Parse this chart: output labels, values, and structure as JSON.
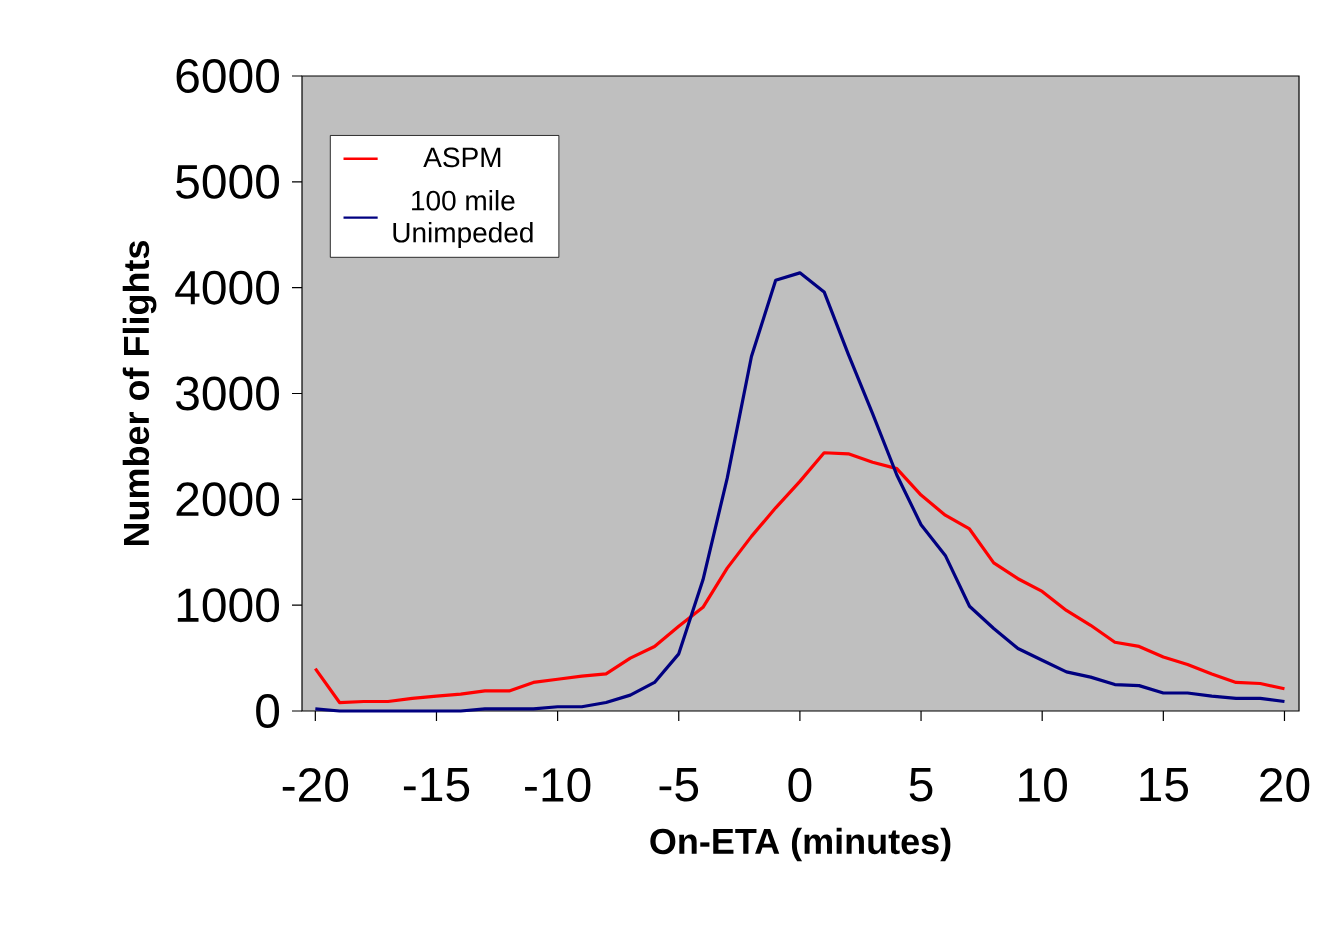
{
  "chart_data": {
    "type": "line",
    "xlabel": "On-ETA (minutes)",
    "ylabel": "Number of Flights",
    "x": [
      -20,
      -19,
      -18,
      -17,
      -16,
      -15,
      -14,
      -13,
      -12,
      -11,
      -10,
      -9,
      -8,
      -7,
      -6,
      -5,
      -4,
      -3,
      -2,
      -1,
      0,
      1,
      2,
      3,
      4,
      5,
      6,
      7,
      8,
      9,
      10,
      11,
      12,
      13,
      14,
      15,
      16,
      17,
      18,
      19,
      20
    ],
    "series": [
      {
        "name": "ASPM",
        "color": "#ff0000",
        "values": [
          400,
          80,
          90,
          90,
          120,
          140,
          160,
          190,
          190,
          270,
          300,
          330,
          350,
          500,
          610,
          800,
          980,
          1350,
          1650,
          1920,
          2170,
          2440,
          2430,
          2350,
          2290,
          2040,
          1850,
          1720,
          1400,
          1250,
          1130,
          950,
          810,
          650,
          610,
          510,
          440,
          350,
          270,
          260,
          210
        ]
      },
      {
        "name": "100 mile Unimpeded",
        "color": "#000080",
        "values": [
          20,
          0,
          0,
          0,
          0,
          0,
          0,
          20,
          20,
          20,
          40,
          40,
          80,
          150,
          270,
          540,
          1240,
          2200,
          3350,
          4070,
          4140,
          3960,
          3370,
          2810,
          2230,
          1760,
          1470,
          990,
          780,
          590,
          480,
          370,
          320,
          250,
          240,
          170,
          170,
          140,
          120,
          120,
          90
        ]
      }
    ],
    "xlim": [
      -20.55,
      20.6
    ],
    "ylim": [
      0,
      6000
    ],
    "xticks": [
      -20,
      -15,
      -10,
      -5,
      0,
      5,
      10,
      15,
      20
    ],
    "yticks": [
      0,
      1000,
      2000,
      3000,
      4000,
      5000,
      6000
    ],
    "legend": "top left",
    "grid": false,
    "marker": "none",
    "line_style": "solid"
  }
}
